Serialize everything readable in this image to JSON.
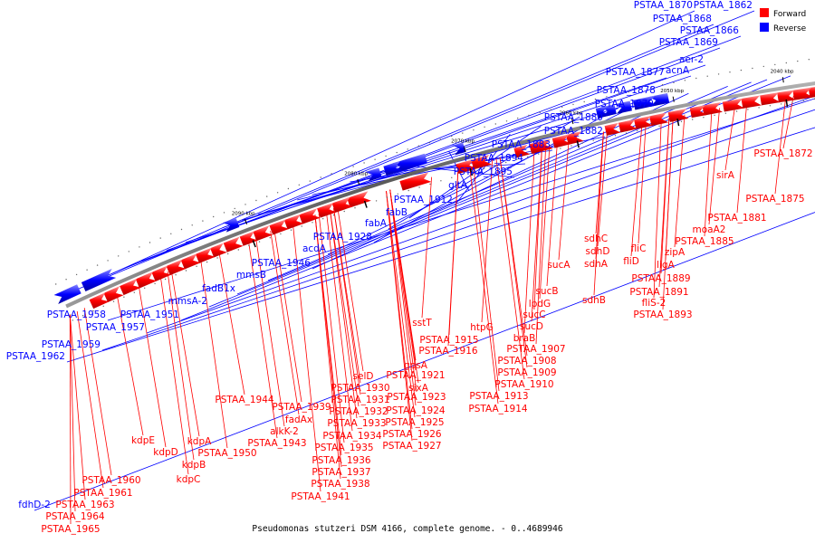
{
  "title": "Pseudomonas stutzeri DSM 4166, complete genome. - 0..4689946",
  "legend": [
    {
      "label": "Forward",
      "color": "#ff0000"
    },
    {
      "label": "Reverse",
      "color": "#0000ff"
    }
  ],
  "colors": {
    "forward": "#ff0000",
    "reverse": "#0000ff",
    "backbone": "#808080"
  },
  "ticks": [
    "1970 kbp",
    "1980 kbp",
    "1990 kbp",
    "2000 kbp",
    "2010 kbp",
    "2020 kbp",
    "2030 kbp",
    "2040 kbp",
    "2050 kbp",
    "2060 kbp",
    "2070 kbp",
    "2080 kbp",
    "2090 kbp"
  ],
  "reverse_labels": [
    "PSTAA_1870",
    "PSTAA_1862",
    "PSTAA_1868",
    "PSTAA_1866",
    "PSTAA_1869",
    "aer-2",
    "acnA",
    "PSTAA_1877",
    "PSTAA_1878",
    "PSTAA_1879",
    "PSTAA_1880",
    "PSTAA_1882",
    "PSTAA_1883",
    "PSTAA_1894",
    "PSTAA_1895",
    "gltA",
    "PSTAA_1912",
    "fabB",
    "fabA",
    "acdA",
    "PSTAA_1928",
    "PSTAA_1946",
    "mmsB",
    "fadB1x",
    "mmsA-2",
    "PSTAA_1951",
    "PSTAA_1958",
    "PSTAA_1957",
    "PSTAA_1959",
    "PSTAA_1962",
    "fdhD-2"
  ],
  "forward_labels": [
    "PSTAA_1872",
    "sirA",
    "PSTAA_1875",
    "PSTAA_1881",
    "moaA2",
    "PSTAA_1885",
    "zipA",
    "ligA",
    "fliC",
    "fliD",
    "PSTAA_1889",
    "PSTAA_1891",
    "fliS-2",
    "PSTAA_1893",
    "sdhC",
    "sdhD",
    "sdhA",
    "sdhB",
    "sucA",
    "sucB",
    "lpdG",
    "sucC",
    "sucD",
    "braB",
    "PSTAA_1907",
    "PSTAA_1908",
    "PSTAA_1909",
    "PSTAA_1910",
    "PSTAA_1913",
    "PSTAA_1914",
    "htpG",
    "PSTAA_1915",
    "PSTAA_1916",
    "sstT",
    "gpsA",
    "PSTAA_1921",
    "sixA",
    "PSTAA_1923",
    "PSTAA_1924",
    "PSTAA_1925",
    "PSTAA_1926",
    "PSTAA_1927",
    "selD",
    "PSTAA_1930",
    "PSTAA_1931",
    "PSTAA_1932",
    "PSTAA_1933",
    "PSTAA_1934",
    "PSTAA_1935",
    "PSTAA_1936",
    "PSTAA_1937",
    "PSTAA_1938",
    "PSTAA_1939",
    "fadAx",
    "PSTAA_1941",
    "alkK-2",
    "PSTAA_1943",
    "PSTAA_1944",
    "kdpA",
    "PSTAA_1950",
    "kdpB",
    "kdpC",
    "kdpD",
    "kdpE",
    "PSTAA_1960",
    "PSTAA_1961",
    "PSTAA_1963",
    "PSTAA_1964",
    "PSTAA_1965"
  ]
}
